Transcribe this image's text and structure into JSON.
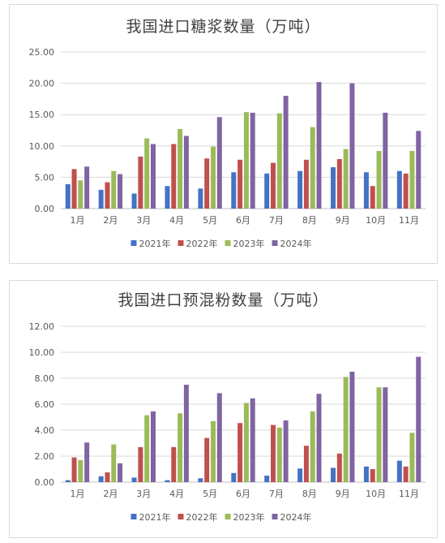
{
  "charts": [
    {
      "type": "bar",
      "title": "我国进口糖浆数量（万吨）",
      "categories": [
        "1月",
        "2月",
        "3月",
        "4月",
        "5月",
        "6月",
        "7月",
        "8月",
        "9月",
        "10月",
        "11月"
      ],
      "ylim": [
        0,
        25
      ],
      "yticks": [
        "0.00",
        "5.00",
        "10.00",
        "15.00",
        "20.00",
        "25.00"
      ],
      "grid": true,
      "legend": "bottom",
      "series": [
        {
          "name": "2021年",
          "color": "#4472C4",
          "values": [
            3.9,
            3.0,
            2.4,
            3.6,
            3.2,
            5.8,
            5.6,
            6.0,
            6.6,
            5.8,
            6.0
          ]
        },
        {
          "name": "2022年",
          "color": "#C0504D",
          "values": [
            6.3,
            4.2,
            8.3,
            10.3,
            8.0,
            7.8,
            7.3,
            7.8,
            7.9,
            3.6,
            5.6
          ]
        },
        {
          "name": "2023年",
          "color": "#9BBB59",
          "values": [
            4.5,
            6.0,
            11.2,
            12.7,
            9.9,
            15.4,
            15.2,
            13.0,
            9.5,
            9.2,
            9.2
          ]
        },
        {
          "name": "2024年",
          "color": "#8064A2",
          "values": [
            6.7,
            5.5,
            10.3,
            11.6,
            14.6,
            15.3,
            18.0,
            20.2,
            20.0,
            15.3,
            12.4
          ]
        }
      ]
    },
    {
      "type": "bar",
      "title": "我国进口预混粉数量（万吨）",
      "categories": [
        "1月",
        "2月",
        "3月",
        "4月",
        "5月",
        "6月",
        "7月",
        "8月",
        "9月",
        "10月",
        "11月"
      ],
      "ylim": [
        0,
        12
      ],
      "yticks": [
        "0.00",
        "2.00",
        "4.00",
        "6.00",
        "8.00",
        "10.00",
        "12.00"
      ],
      "grid": true,
      "legend": "bottom",
      "series": [
        {
          "name": "2021年",
          "color": "#4472C4",
          "values": [
            0.15,
            0.45,
            0.35,
            0.15,
            0.3,
            0.7,
            0.5,
            1.05,
            1.1,
            1.2,
            1.65
          ]
        },
        {
          "name": "2022年",
          "color": "#C0504D",
          "values": [
            1.9,
            0.75,
            2.7,
            2.7,
            3.4,
            4.55,
            4.4,
            2.8,
            2.2,
            1.0,
            1.2
          ]
        },
        {
          "name": "2023年",
          "color": "#9BBB59",
          "values": [
            1.7,
            2.9,
            5.15,
            5.3,
            4.7,
            6.1,
            4.2,
            5.45,
            8.1,
            7.3,
            3.8
          ]
        },
        {
          "name": "2024年",
          "color": "#8064A2",
          "values": [
            3.05,
            1.45,
            5.45,
            7.5,
            6.85,
            6.45,
            4.75,
            6.8,
            8.5,
            7.3,
            9.65
          ]
        }
      ]
    }
  ]
}
